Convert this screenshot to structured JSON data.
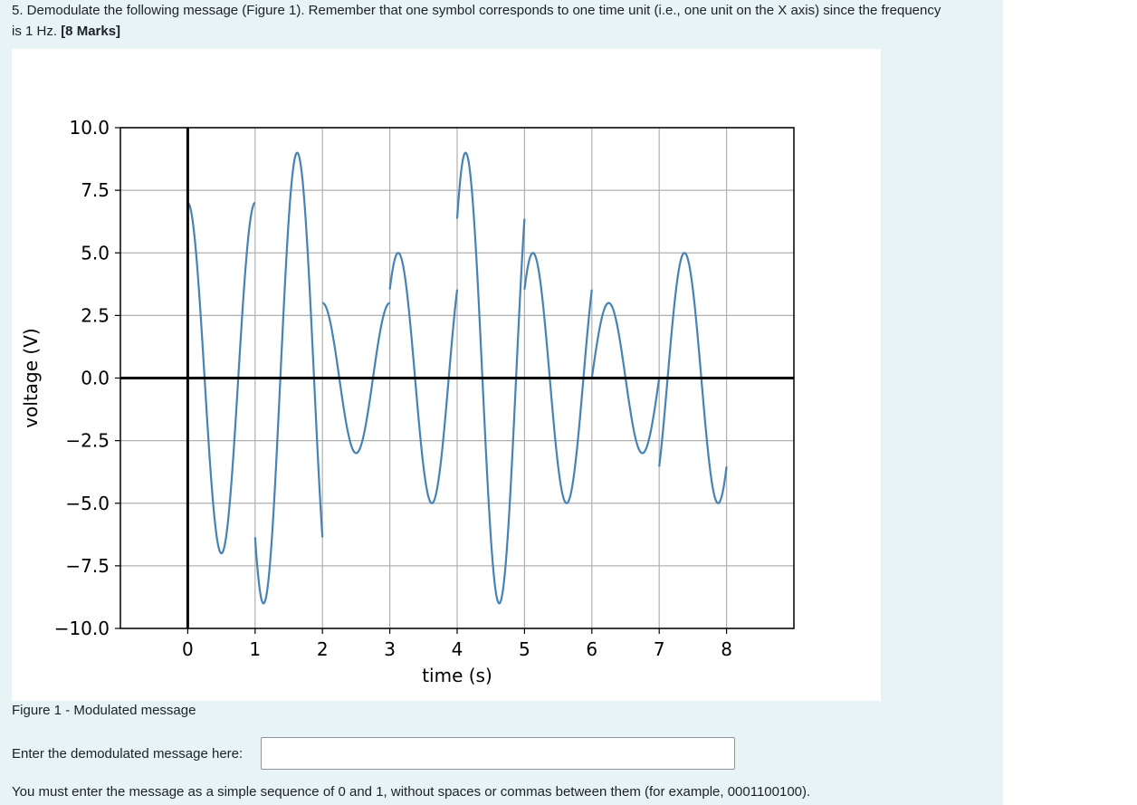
{
  "question": {
    "text": "5. Demodulate the following message (Figure 1). Remember that one symbol corresponds to one time unit (i.e., one unit on the X axis) since the frequency is 1 Hz. ",
    "marks": "[8 Marks]"
  },
  "figure": {
    "caption": "Figure 1 - Modulated message"
  },
  "answer": {
    "label": "Enter the demodulated message here:",
    "value": "",
    "instructions": "You must enter the message as a simple sequence of 0 and 1, without spaces or commas between them (for example, 0001100100)."
  },
  "colors": {
    "panel": "#e7f3f5",
    "signal": "#4682b4",
    "grid": "#b0b0b0"
  },
  "chart_data": {
    "type": "line",
    "xlabel": "time (s)",
    "ylabel": "voltage (V)",
    "xlim": [
      -1.0,
      9.0
    ],
    "ylim": [
      -10.0,
      10.0
    ],
    "xticks": [
      "0",
      "1",
      "2",
      "3",
      "4",
      "5",
      "6",
      "7",
      "8"
    ],
    "yticks": [
      "10.0",
      "7.5",
      "5.0",
      "2.5",
      "0.0",
      "−2.5",
      "−5.0",
      "−7.5",
      "−10.0"
    ],
    "grid": true,
    "frequency_hz": 1,
    "series": [
      {
        "segments": [
          {
            "t0": 0,
            "t1": 1,
            "amplitude": 7.0,
            "phase_deg": 90
          },
          {
            "t0": 1,
            "t1": 2,
            "amplitude": 9.0,
            "phase_deg": 225
          },
          {
            "t0": 2,
            "t1": 3,
            "amplitude": 3.0,
            "phase_deg": 90
          },
          {
            "t0": 3,
            "t1": 4,
            "amplitude": 5.0,
            "phase_deg": 45
          },
          {
            "t0": 4,
            "t1": 5,
            "amplitude": 9.0,
            "phase_deg": 45
          },
          {
            "t0": 5,
            "t1": 6,
            "amplitude": 5.0,
            "phase_deg": 45
          },
          {
            "t0": 6,
            "t1": 7,
            "amplitude": 3.0,
            "phase_deg": 0
          },
          {
            "t0": 7,
            "t1": 8,
            "amplitude": 5.0,
            "phase_deg": 315
          }
        ]
      }
    ]
  }
}
